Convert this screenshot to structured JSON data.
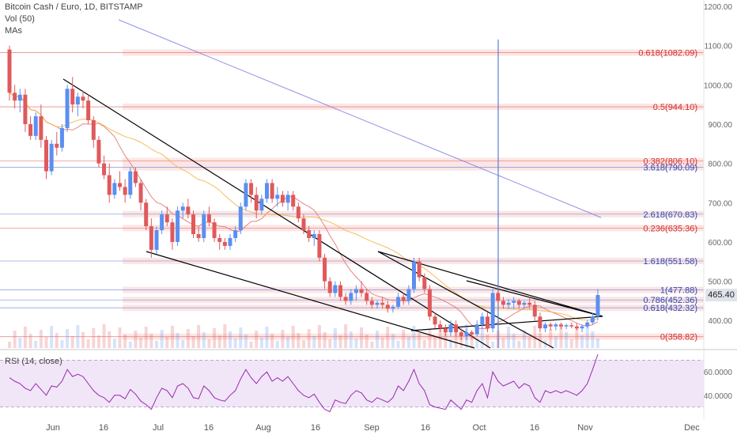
{
  "header": {
    "symbol_line": "Bitcoin Cash / Euro, 1D, BITSTAMP",
    "volume_label": "Vol (50)",
    "mas_label": "MAs"
  },
  "rsi_panel": {
    "label": "RSI (14, close)"
  },
  "colors": {
    "bull": "#5b8ff0",
    "bear": "#e0595b",
    "fib_line": "#e57373",
    "fib_band": "#f5b7b1",
    "rsi_line": "#9c27b0",
    "rsi_fill": "#f0e6f7",
    "ma_red": "#e07070",
    "ma_orange": "#f5b041",
    "ma_blue": "#7b7fe0",
    "trend_line": "#000000",
    "vertical_marker": "#5b7fd0"
  },
  "chart_data": {
    "type": "candlestick",
    "title": "Bitcoin Cash / Euro, 1D, BITSTAMP",
    "x_ticks": [
      "Jun",
      "16",
      "Jul",
      "16",
      "Aug",
      "16",
      "Sep",
      "16",
      "Oct",
      "16",
      "Nov",
      "Dec"
    ],
    "y_ticks": [
      400.0,
      500.0,
      600.0,
      700.0,
      800.0,
      900.0,
      1000.0,
      1100.0,
      1200.0
    ],
    "y_tick_labels": [
      "400.00",
      "500.00",
      "600.00",
      "700.00",
      "800.00",
      "900.00",
      "1000.00",
      "1100.00",
      "1200.00"
    ],
    "ylim": [
      330,
      1200
    ],
    "current_price": "465.40",
    "fib_levels": [
      {
        "label": "0.618(1082.09)",
        "value": 1082.09,
        "color": "red"
      },
      {
        "label": "0.5(944.10)",
        "value": 944.1,
        "color": "red"
      },
      {
        "label": "0.382(806.10)",
        "value": 806.1,
        "color": "red"
      },
      {
        "label": "3.618(790.09)",
        "value": 790.09,
        "color": "blue"
      },
      {
        "label": "2.618(670.83)",
        "value": 670.83,
        "color": "blue"
      },
      {
        "label": "0.236(635.36)",
        "value": 635.36,
        "color": "red"
      },
      {
        "label": "1.618(551.58)",
        "value": 551.58,
        "color": "blue"
      },
      {
        "label": "1(477.88)",
        "value": 477.88,
        "color": "blue"
      },
      {
        "label": "0.786(452.36)",
        "value": 452.36,
        "color": "blue"
      },
      {
        "label": "0.618(432.32)",
        "value": 432.32,
        "color": "blue"
      },
      {
        "label": "0(358.82)",
        "value": 358.82,
        "color": "red"
      }
    ],
    "candles": [
      [
        1090,
        1100,
        960,
        980
      ],
      [
        980,
        1000,
        940,
        960
      ],
      [
        960,
        990,
        930,
        975
      ],
      [
        975,
        990,
        880,
        900
      ],
      [
        900,
        920,
        860,
        870
      ],
      [
        870,
        930,
        860,
        920
      ],
      [
        920,
        950,
        840,
        860
      ],
      [
        860,
        870,
        760,
        780
      ],
      [
        780,
        860,
        770,
        850
      ],
      [
        850,
        880,
        820,
        840
      ],
      [
        840,
        900,
        830,
        890
      ],
      [
        890,
        1000,
        880,
        990
      ],
      [
        990,
        1020,
        930,
        950
      ],
      [
        950,
        980,
        920,
        970
      ],
      [
        970,
        985,
        940,
        960
      ],
      [
        960,
        975,
        900,
        910
      ],
      [
        910,
        920,
        840,
        860
      ],
      [
        860,
        870,
        790,
        800
      ],
      [
        800,
        820,
        760,
        770
      ],
      [
        770,
        800,
        700,
        720
      ],
      [
        720,
        760,
        710,
        750
      ],
      [
        750,
        780,
        730,
        740
      ],
      [
        740,
        760,
        700,
        720
      ],
      [
        720,
        790,
        710,
        780
      ],
      [
        780,
        790,
        740,
        750
      ],
      [
        750,
        760,
        680,
        700
      ],
      [
        700,
        710,
        630,
        640
      ],
      [
        640,
        660,
        560,
        580
      ],
      [
        580,
        640,
        570,
        630
      ],
      [
        630,
        680,
        620,
        670
      ],
      [
        670,
        690,
        640,
        650
      ],
      [
        650,
        660,
        580,
        600
      ],
      [
        600,
        690,
        590,
        680
      ],
      [
        680,
        700,
        660,
        690
      ],
      [
        690,
        710,
        660,
        670
      ],
      [
        670,
        680,
        610,
        620
      ],
      [
        620,
        640,
        600,
        610
      ],
      [
        610,
        680,
        600,
        670
      ],
      [
        670,
        690,
        640,
        650
      ],
      [
        650,
        660,
        600,
        610
      ],
      [
        610,
        620,
        580,
        600
      ],
      [
        600,
        610,
        580,
        590
      ],
      [
        590,
        620,
        580,
        610
      ],
      [
        610,
        640,
        600,
        630
      ],
      [
        630,
        700,
        620,
        690
      ],
      [
        690,
        760,
        680,
        750
      ],
      [
        750,
        760,
        700,
        720
      ],
      [
        720,
        740,
        660,
        680
      ],
      [
        680,
        720,
        670,
        710
      ],
      [
        710,
        760,
        700,
        750
      ],
      [
        750,
        760,
        700,
        710
      ],
      [
        710,
        740,
        690,
        720
      ],
      [
        720,
        730,
        690,
        700
      ],
      [
        700,
        730,
        680,
        720
      ],
      [
        720,
        730,
        680,
        690
      ],
      [
        690,
        700,
        650,
        660
      ],
      [
        660,
        670,
        620,
        630
      ],
      [
        630,
        640,
        600,
        610
      ],
      [
        610,
        630,
        590,
        620
      ],
      [
        620,
        630,
        550,
        560
      ],
      [
        560,
        570,
        480,
        500
      ],
      [
        500,
        510,
        460,
        470
      ],
      [
        470,
        500,
        460,
        490
      ],
      [
        490,
        500,
        450,
        460
      ],
      [
        460,
        470,
        440,
        450
      ],
      [
        450,
        480,
        440,
        470
      ],
      [
        470,
        490,
        450,
        480
      ],
      [
        480,
        500,
        460,
        470
      ],
      [
        470,
        480,
        440,
        450
      ],
      [
        450,
        460,
        430,
        440
      ],
      [
        440,
        450,
        430,
        445
      ],
      [
        445,
        460,
        430,
        440
      ],
      [
        440,
        450,
        420,
        430
      ],
      [
        430,
        440,
        420,
        435
      ],
      [
        435,
        470,
        430,
        460
      ],
      [
        460,
        470,
        440,
        450
      ],
      [
        450,
        490,
        440,
        480
      ],
      [
        480,
        560,
        470,
        550
      ],
      [
        550,
        560,
        500,
        510
      ],
      [
        510,
        520,
        470,
        480
      ],
      [
        480,
        490,
        400,
        410
      ],
      [
        410,
        420,
        380,
        390
      ],
      [
        390,
        400,
        370,
        380
      ],
      [
        380,
        390,
        360,
        370
      ],
      [
        370,
        400,
        360,
        390
      ],
      [
        390,
        400,
        360,
        370
      ],
      [
        370,
        380,
        350,
        360
      ],
      [
        360,
        380,
        350,
        370
      ],
      [
        370,
        375,
        355,
        365
      ],
      [
        365,
        400,
        360,
        390
      ],
      [
        390,
        420,
        380,
        410
      ],
      [
        410,
        420,
        370,
        380
      ],
      [
        380,
        480,
        370,
        470
      ],
      [
        470,
        480,
        440,
        450
      ],
      [
        450,
        460,
        430,
        440
      ],
      [
        440,
        455,
        430,
        445
      ],
      [
        445,
        460,
        430,
        450
      ],
      [
        450,
        455,
        430,
        440
      ],
      [
        440,
        450,
        430,
        445
      ],
      [
        445,
        460,
        430,
        440
      ],
      [
        440,
        450,
        400,
        410
      ],
      [
        410,
        420,
        370,
        380
      ],
      [
        380,
        395,
        370,
        390
      ],
      [
        390,
        395,
        375,
        385
      ],
      [
        385,
        395,
        375,
        390
      ],
      [
        390,
        395,
        378,
        385
      ],
      [
        385,
        392,
        378,
        388
      ],
      [
        388,
        395,
        380,
        385
      ],
      [
        385,
        392,
        375,
        380
      ],
      [
        380,
        390,
        370,
        385
      ],
      [
        385,
        400,
        380,
        395
      ],
      [
        395,
        420,
        390,
        410
      ],
      [
        410,
        480,
        400,
        465
      ]
    ],
    "rsi_range": [
      25,
      75
    ],
    "rsi_ticks": [
      40.0,
      60.0
    ],
    "rsi_tick_labels": [
      "40.0000",
      "60.0000"
    ],
    "rsi_values": [
      55,
      52,
      50,
      46,
      44,
      50,
      45,
      40,
      48,
      47,
      52,
      62,
      56,
      58,
      56,
      50,
      44,
      40,
      38,
      34,
      40,
      40,
      37,
      45,
      41,
      35,
      32,
      28,
      38,
      46,
      44,
      38,
      48,
      50,
      46,
      38,
      37,
      48,
      44,
      38,
      36,
      35,
      40,
      44,
      54,
      62,
      55,
      50,
      56,
      60,
      52,
      55,
      52,
      56,
      50,
      44,
      40,
      38,
      41,
      34,
      28,
      26,
      36,
      34,
      33,
      40,
      44,
      42,
      36,
      34,
      38,
      36,
      34,
      38,
      48,
      44,
      52,
      62,
      50,
      44,
      32,
      30,
      29,
      28,
      36,
      32,
      28,
      36,
      34,
      44,
      50,
      38,
      60,
      52,
      48,
      50,
      52,
      46,
      50,
      48,
      38,
      34,
      44,
      42,
      44,
      42,
      44,
      42,
      40,
      44,
      50,
      62,
      75
    ]
  }
}
